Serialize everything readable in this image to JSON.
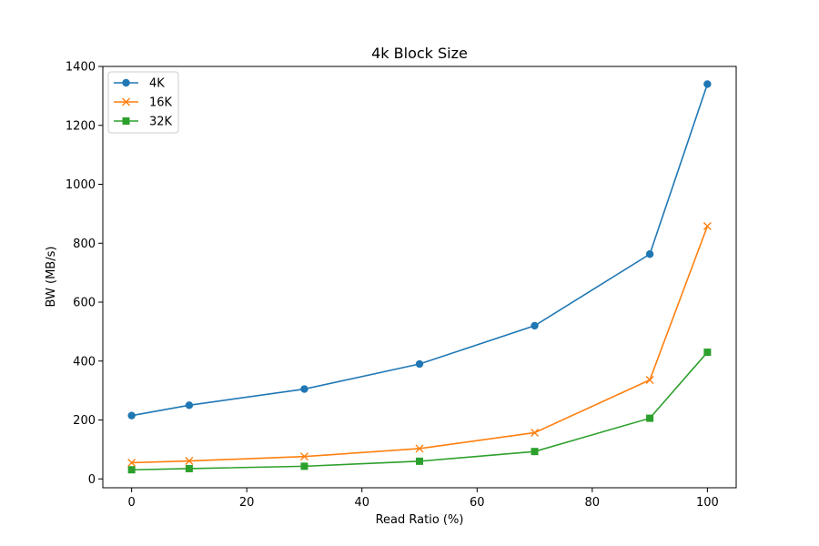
{
  "chart_data": {
    "type": "line",
    "title": "4k Block Size",
    "xlabel": "Read Ratio (%)",
    "ylabel": "BW (MB/s)",
    "x": [
      0,
      10,
      30,
      50,
      70,
      90,
      100
    ],
    "xlim": [
      -5,
      105
    ],
    "ylim": [
      -30,
      1400
    ],
    "xticks": [
      0,
      20,
      40,
      60,
      80,
      100
    ],
    "yticks": [
      0,
      200,
      400,
      600,
      800,
      1000,
      1200,
      1400
    ],
    "grid": false,
    "legend": "upper-left",
    "series": [
      {
        "name": "4K",
        "color": "#1f77b4",
        "marker": "circle",
        "values": [
          215,
          250,
          305,
          390,
          520,
          763,
          1340
        ]
      },
      {
        "name": "16K",
        "color": "#ff7f0e",
        "marker": "x",
        "values": [
          55,
          61,
          76,
          103,
          157,
          336,
          858
        ]
      },
      {
        "name": "32K",
        "color": "#2ca02c",
        "marker": "square",
        "values": [
          31,
          35,
          43,
          60,
          93,
          206,
          430
        ]
      }
    ]
  }
}
